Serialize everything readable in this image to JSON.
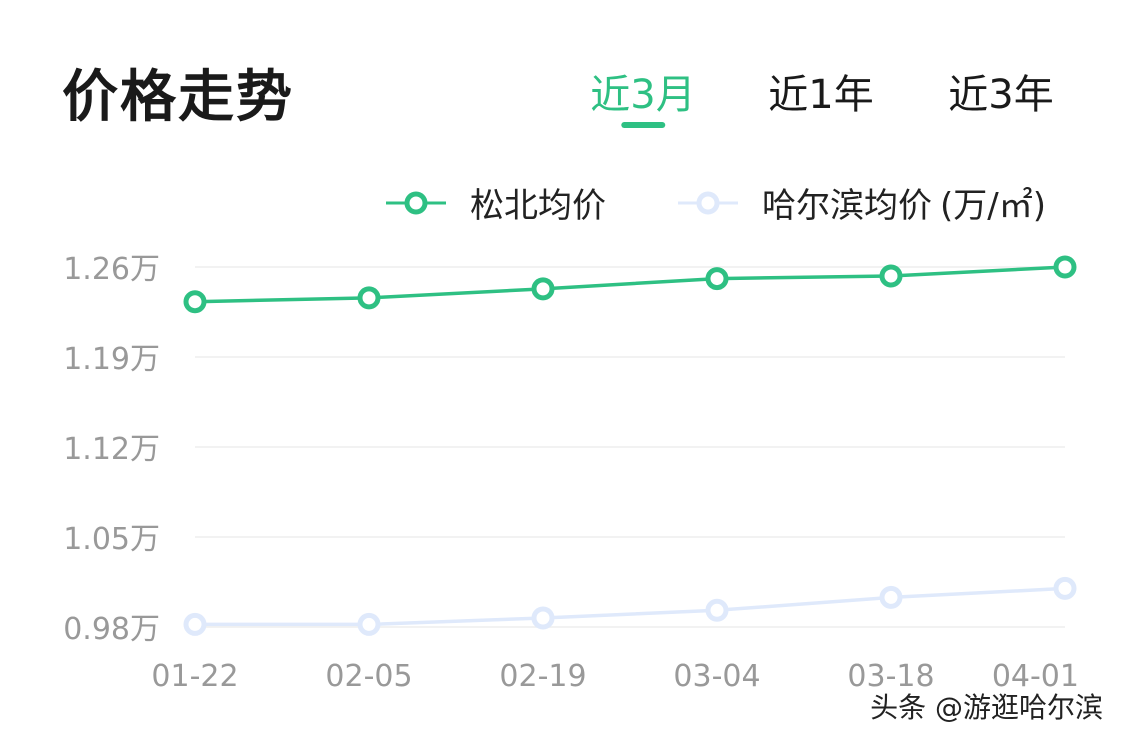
{
  "header": {
    "title": "价格走势"
  },
  "tabs": [
    {
      "label": "近3月",
      "active": true
    },
    {
      "label": "近1年",
      "active": false
    },
    {
      "label": "近3年",
      "active": false
    }
  ],
  "colors": {
    "accent": "#2ec083",
    "secondary": "#dfe9fb",
    "grid": "#eeeeee",
    "axis_text": "#999999"
  },
  "chart_data": {
    "type": "line",
    "x": [
      "01-22",
      "02-05",
      "02-19",
      "03-04",
      "03-18",
      "04-01"
    ],
    "yticks": [
      1.26,
      1.19,
      1.12,
      1.05,
      0.98
    ],
    "ytick_labels": [
      "1.26万",
      "1.19万",
      "1.12万",
      "1.05万",
      "0.98万"
    ],
    "ylim": [
      0.98,
      1.26
    ],
    "unit": "(万/㎡)",
    "legend_position": "top-right",
    "grid": true,
    "series": [
      {
        "name": "松北均价",
        "color": "#2ec083",
        "values": [
          1.233,
          1.236,
          1.243,
          1.251,
          1.253,
          1.26
        ]
      },
      {
        "name": "哈尔滨均价",
        "color": "#dfe9fb",
        "values": [
          0.982,
          0.982,
          0.987,
          0.993,
          1.003,
          1.01
        ]
      }
    ]
  },
  "watermark": "头条 @游逛哈尔滨"
}
